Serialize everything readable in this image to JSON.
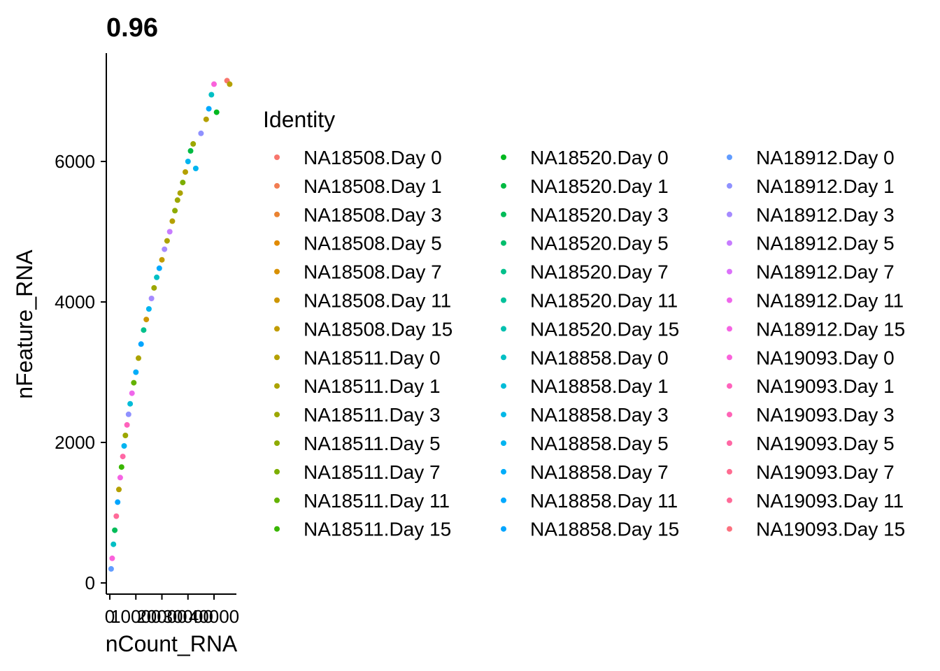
{
  "chart_data": {
    "type": "scatter",
    "title": "0.96",
    "xlabel": "nCount_RNA",
    "ylabel": "nFeature_RNA",
    "xlim": [
      0,
      50000
    ],
    "ylim": [
      0,
      7200
    ],
    "x_ticks": [
      0,
      10000,
      20000,
      30000,
      40000
    ],
    "x_tick_labels": [
      "0",
      "10000",
      "20000",
      "30000",
      "40000"
    ],
    "y_ticks": [
      0,
      2000,
      4000,
      6000
    ],
    "y_tick_labels": [
      "0",
      "2000",
      "4000",
      "6000"
    ],
    "grid": false,
    "legend_title": "Identity",
    "legend_position": "right",
    "series": [
      {
        "name": "NA18508.Day 0",
        "color": "#F8766D"
      },
      {
        "name": "NA18508.Day 1",
        "color": "#F27D52"
      },
      {
        "name": "NA18508.Day 3",
        "color": "#EA8331"
      },
      {
        "name": "NA18508.Day 5",
        "color": "#E18A00"
      },
      {
        "name": "NA18508.Day 7",
        "color": "#D89000"
      },
      {
        "name": "NA18508.Day 11",
        "color": "#CD9600"
      },
      {
        "name": "NA18508.Day 15",
        "color": "#C19C00"
      },
      {
        "name": "NA18511.Day 0",
        "color": "#B4A000"
      },
      {
        "name": "NA18511.Day 1",
        "color": "#ABA300"
      },
      {
        "name": "NA18511.Day 3",
        "color": "#9CA700"
      },
      {
        "name": "NA18511.Day 5",
        "color": "#8EAB00"
      },
      {
        "name": "NA18511.Day 7",
        "color": "#7CAE00"
      },
      {
        "name": "NA18511.Day 11",
        "color": "#64B200"
      },
      {
        "name": "NA18511.Day 15",
        "color": "#39B600"
      },
      {
        "name": "NA18520.Day 0",
        "color": "#00B81F"
      },
      {
        "name": "NA18520.Day 1",
        "color": "#00BA42"
      },
      {
        "name": "NA18520.Day 3",
        "color": "#00BC59"
      },
      {
        "name": "NA18520.Day 5",
        "color": "#00BE6C"
      },
      {
        "name": "NA18520.Day 7",
        "color": "#00C08B"
      },
      {
        "name": "NA18520.Day 11",
        "color": "#00C19A"
      },
      {
        "name": "NA18520.Day 15",
        "color": "#00C0AF"
      },
      {
        "name": "NA18858.Day 0",
        "color": "#00BFC4"
      },
      {
        "name": "NA18858.Day 1",
        "color": "#00BCD8"
      },
      {
        "name": "NA18858.Day 3",
        "color": "#00B8E7"
      },
      {
        "name": "NA18858.Day 5",
        "color": "#00B4F0"
      },
      {
        "name": "NA18858.Day 7",
        "color": "#00ADFA"
      },
      {
        "name": "NA18858.Day 11",
        "color": "#00A9FF"
      },
      {
        "name": "NA18858.Day 15",
        "color": "#00A5FF"
      },
      {
        "name": "NA18912.Day 0",
        "color": "#619CFF"
      },
      {
        "name": "NA18912.Day 1",
        "color": "#8F91FF"
      },
      {
        "name": "NA18912.Day 3",
        "color": "#A58AFF"
      },
      {
        "name": "NA18912.Day 5",
        "color": "#C77CFF"
      },
      {
        "name": "NA18912.Day 7",
        "color": "#DC71FA"
      },
      {
        "name": "NA18912.Day 11",
        "color": "#EF67EB"
      },
      {
        "name": "NA18912.Day 15",
        "color": "#F564E3"
      },
      {
        "name": "NA19093.Day 0",
        "color": "#FA62DB"
      },
      {
        "name": "NA19093.Day 1",
        "color": "#FF62BC"
      },
      {
        "name": "NA19093.Day 3",
        "color": "#FF63B6"
      },
      {
        "name": "NA19093.Day 5",
        "color": "#FF67A4"
      },
      {
        "name": "NA19093.Day 7",
        "color": "#FF6C91"
      },
      {
        "name": "NA19093.Day 11",
        "color": "#FF6A98"
      },
      {
        "name": "NA19093.Day 15",
        "color": "#FC717F"
      }
    ],
    "points": [
      {
        "x": 500,
        "y": 200,
        "s": 28
      },
      {
        "x": 900,
        "y": 350,
        "s": 35
      },
      {
        "x": 1400,
        "y": 550,
        "s": 21
      },
      {
        "x": 1900,
        "y": 750,
        "s": 16
      },
      {
        "x": 2500,
        "y": 950,
        "s": 40
      },
      {
        "x": 3000,
        "y": 1150,
        "s": 27
      },
      {
        "x": 3500,
        "y": 1330,
        "s": 7
      },
      {
        "x": 4000,
        "y": 1500,
        "s": 34
      },
      {
        "x": 4500,
        "y": 1650,
        "s": 13
      },
      {
        "x": 5000,
        "y": 1800,
        "s": 38
      },
      {
        "x": 5500,
        "y": 1950,
        "s": 24
      },
      {
        "x": 6000,
        "y": 2100,
        "s": 9
      },
      {
        "x": 6600,
        "y": 2250,
        "s": 36
      },
      {
        "x": 7200,
        "y": 2400,
        "s": 29
      },
      {
        "x": 7800,
        "y": 2550,
        "s": 22
      },
      {
        "x": 8500,
        "y": 2700,
        "s": 33
      },
      {
        "x": 9200,
        "y": 2850,
        "s": 12
      },
      {
        "x": 10000,
        "y": 3000,
        "s": 25
      },
      {
        "x": 11000,
        "y": 3200,
        "s": 8
      },
      {
        "x": 12000,
        "y": 3400,
        "s": 27
      },
      {
        "x": 13000,
        "y": 3600,
        "s": 18
      },
      {
        "x": 14000,
        "y": 3750,
        "s": 5
      },
      {
        "x": 15000,
        "y": 3900,
        "s": 24
      },
      {
        "x": 16000,
        "y": 4050,
        "s": 30
      },
      {
        "x": 17000,
        "y": 4200,
        "s": 9
      },
      {
        "x": 18000,
        "y": 4350,
        "s": 21
      },
      {
        "x": 19000,
        "y": 4480,
        "s": 26
      },
      {
        "x": 20000,
        "y": 4600,
        "s": 6
      },
      {
        "x": 21000,
        "y": 4750,
        "s": 30
      },
      {
        "x": 22000,
        "y": 4870,
        "s": 8
      },
      {
        "x": 23000,
        "y": 5000,
        "s": 31
      },
      {
        "x": 24000,
        "y": 5150,
        "s": 7
      },
      {
        "x": 25000,
        "y": 5300,
        "s": 10
      },
      {
        "x": 26000,
        "y": 5450,
        "s": 9
      },
      {
        "x": 27000,
        "y": 5550,
        "s": 8
      },
      {
        "x": 28000,
        "y": 5700,
        "s": 11
      },
      {
        "x": 29000,
        "y": 5850,
        "s": 7
      },
      {
        "x": 30000,
        "y": 6000,
        "s": 24
      },
      {
        "x": 31000,
        "y": 6150,
        "s": 15
      },
      {
        "x": 32000,
        "y": 6250,
        "s": 9
      },
      {
        "x": 33000,
        "y": 5900,
        "s": 24
      },
      {
        "x": 35000,
        "y": 6400,
        "s": 29
      },
      {
        "x": 37000,
        "y": 6600,
        "s": 7
      },
      {
        "x": 38000,
        "y": 6750,
        "s": 26
      },
      {
        "x": 39000,
        "y": 6950,
        "s": 21
      },
      {
        "x": 40000,
        "y": 7100,
        "s": 35
      },
      {
        "x": 41000,
        "y": 6700,
        "s": 14
      },
      {
        "x": 45000,
        "y": 7150,
        "s": 0
      },
      {
        "x": 46000,
        "y": 7100,
        "s": 7
      }
    ]
  }
}
